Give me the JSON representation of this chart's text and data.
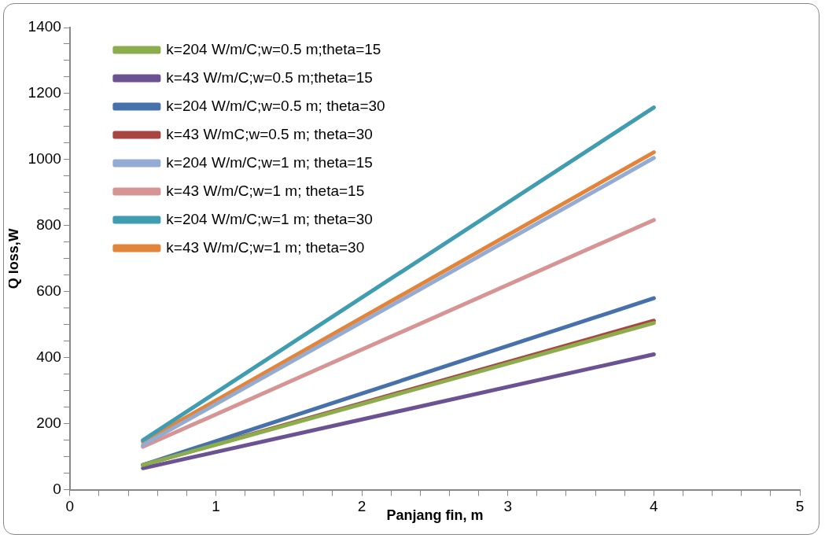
{
  "chart_data": {
    "type": "line",
    "xlabel": "Panjang fin, m",
    "ylabel": "Q loss,W",
    "xlim": [
      0,
      5
    ],
    "xticks": [
      0,
      {
        "value": 0.2,
        "label": null
      },
      {
        "value": 0.4,
        "label": null
      },
      {
        "value": 0.6,
        "label": null
      },
      {
        "value": 0.8,
        "label": null
      },
      1,
      {
        "value": 1.2,
        "label": null
      },
      {
        "value": 1.4,
        "label": null
      },
      {
        "value": 1.6,
        "label": null
      },
      {
        "value": 1.8,
        "label": null
      },
      2,
      {
        "value": 2.2,
        "label": null
      },
      {
        "value": 2.4,
        "label": null
      },
      {
        "value": 2.6,
        "label": null
      },
      {
        "value": 2.8,
        "label": null
      },
      3,
      {
        "value": 3.2,
        "label": null
      },
      {
        "value": 3.4,
        "label": null
      },
      {
        "value": 3.6,
        "label": null
      },
      {
        "value": 3.8,
        "label": null
      },
      4,
      {
        "value": 4.2,
        "label": null
      },
      {
        "value": 4.4,
        "label": null
      },
      {
        "value": 4.6,
        "label": null
      },
      {
        "value": 4.8,
        "label": null
      },
      5
    ],
    "ylim": [
      0,
      1400
    ],
    "yticks": [
      0,
      {
        "value": 50,
        "label": null
      },
      {
        "value": 100,
        "label": null
      },
      {
        "value": 150,
        "label": null
      },
      200,
      {
        "value": 250,
        "label": null
      },
      {
        "value": 300,
        "label": null
      },
      {
        "value": 350,
        "label": null
      },
      400,
      {
        "value": 450,
        "label": null
      },
      {
        "value": 500,
        "label": null
      },
      {
        "value": 550,
        "label": null
      },
      600,
      {
        "value": 650,
        "label": null
      },
      {
        "value": 700,
        "label": null
      },
      {
        "value": 750,
        "label": null
      },
      800,
      {
        "value": 850,
        "label": null
      },
      {
        "value": 900,
        "label": null
      },
      {
        "value": 950,
        "label": null
      },
      1000,
      {
        "value": 1050,
        "label": null
      },
      {
        "value": 1100,
        "label": null
      },
      {
        "value": 1150,
        "label": null
      },
      1200,
      {
        "value": 1250,
        "label": null
      },
      {
        "value": 1300,
        "label": null
      },
      {
        "value": 1350,
        "label": null
      },
      1400
    ],
    "grid": false,
    "legend": "top left",
    "marker": "none",
    "line_style": "solid",
    "x": [
      0.5,
      4
    ],
    "series": [
      {
        "name": "k=204 W/m/C;w=0.5 m;theta=15",
        "color": "#8bad4c",
        "values": [
          75,
          505
        ]
      },
      {
        "name": "k=43 W/m/C;w=0.5 m;theta=15",
        "color": "#6b5293",
        "values": [
          65,
          410
        ]
      },
      {
        "name": "k=204 W/m/C;w=0.5 m; theta=30",
        "color": "#4671ab",
        "values": [
          75,
          580
        ]
      },
      {
        "name": "k=43 W/mC;w=0.5 m; theta=30",
        "color": "#a84442",
        "values": [
          75,
          512
        ]
      },
      {
        "name": "k=204 W/m/C;w=1 m; theta=15",
        "color": "#94abd3",
        "values": [
          135,
          1005
        ]
      },
      {
        "name": "k=43 W/m/C;w=1 m; theta=15",
        "color": "#d69594",
        "values": [
          130,
          817
        ]
      },
      {
        "name": "k=204 W/m/C;w=1 m; theta=30",
        "color": "#3f9cb1",
        "values": [
          150,
          1158
        ]
      },
      {
        "name": "k=43 W/m/C;w=1 m; theta=30",
        "color": "#e2853a",
        "values": [
          145,
          1022
        ]
      }
    ]
  }
}
